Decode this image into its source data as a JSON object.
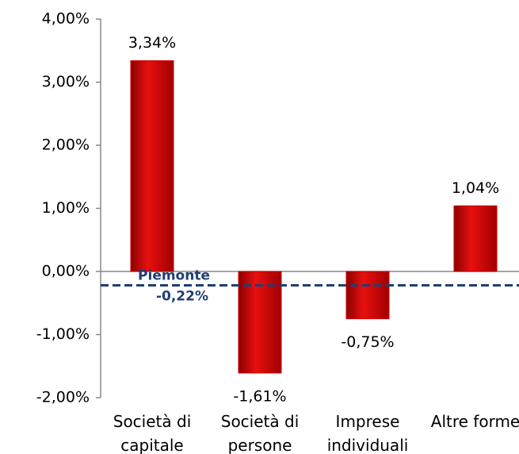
{
  "chart_data": {
    "type": "bar",
    "categories": [
      "Società di capitale",
      "Società di persone",
      "Imprese individuali",
      "Altre forme"
    ],
    "values": [
      3.34,
      -1.61,
      -0.75,
      1.04
    ],
    "value_labels": [
      "3,34%",
      "-1,61%",
      "-0,75%",
      "1,04%"
    ],
    "color": "#d40000",
    "ylim": [
      -2,
      4
    ],
    "yticks": [
      {
        "value": -2,
        "label": "-2,00%"
      },
      {
        "value": -1,
        "label": "-1,00%"
      },
      {
        "value": 0,
        "label": "0,00%"
      },
      {
        "value": 1,
        "label": "1,00%"
      },
      {
        "value": 2,
        "label": "2,00%"
      },
      {
        "value": 3,
        "label": "3,00%"
      },
      {
        "value": 4,
        "label": "4,00%"
      }
    ],
    "reference_line": {
      "name": "Piemonte",
      "value": -0.22,
      "label": "-0,22%",
      "color": "#1f3f73"
    }
  }
}
